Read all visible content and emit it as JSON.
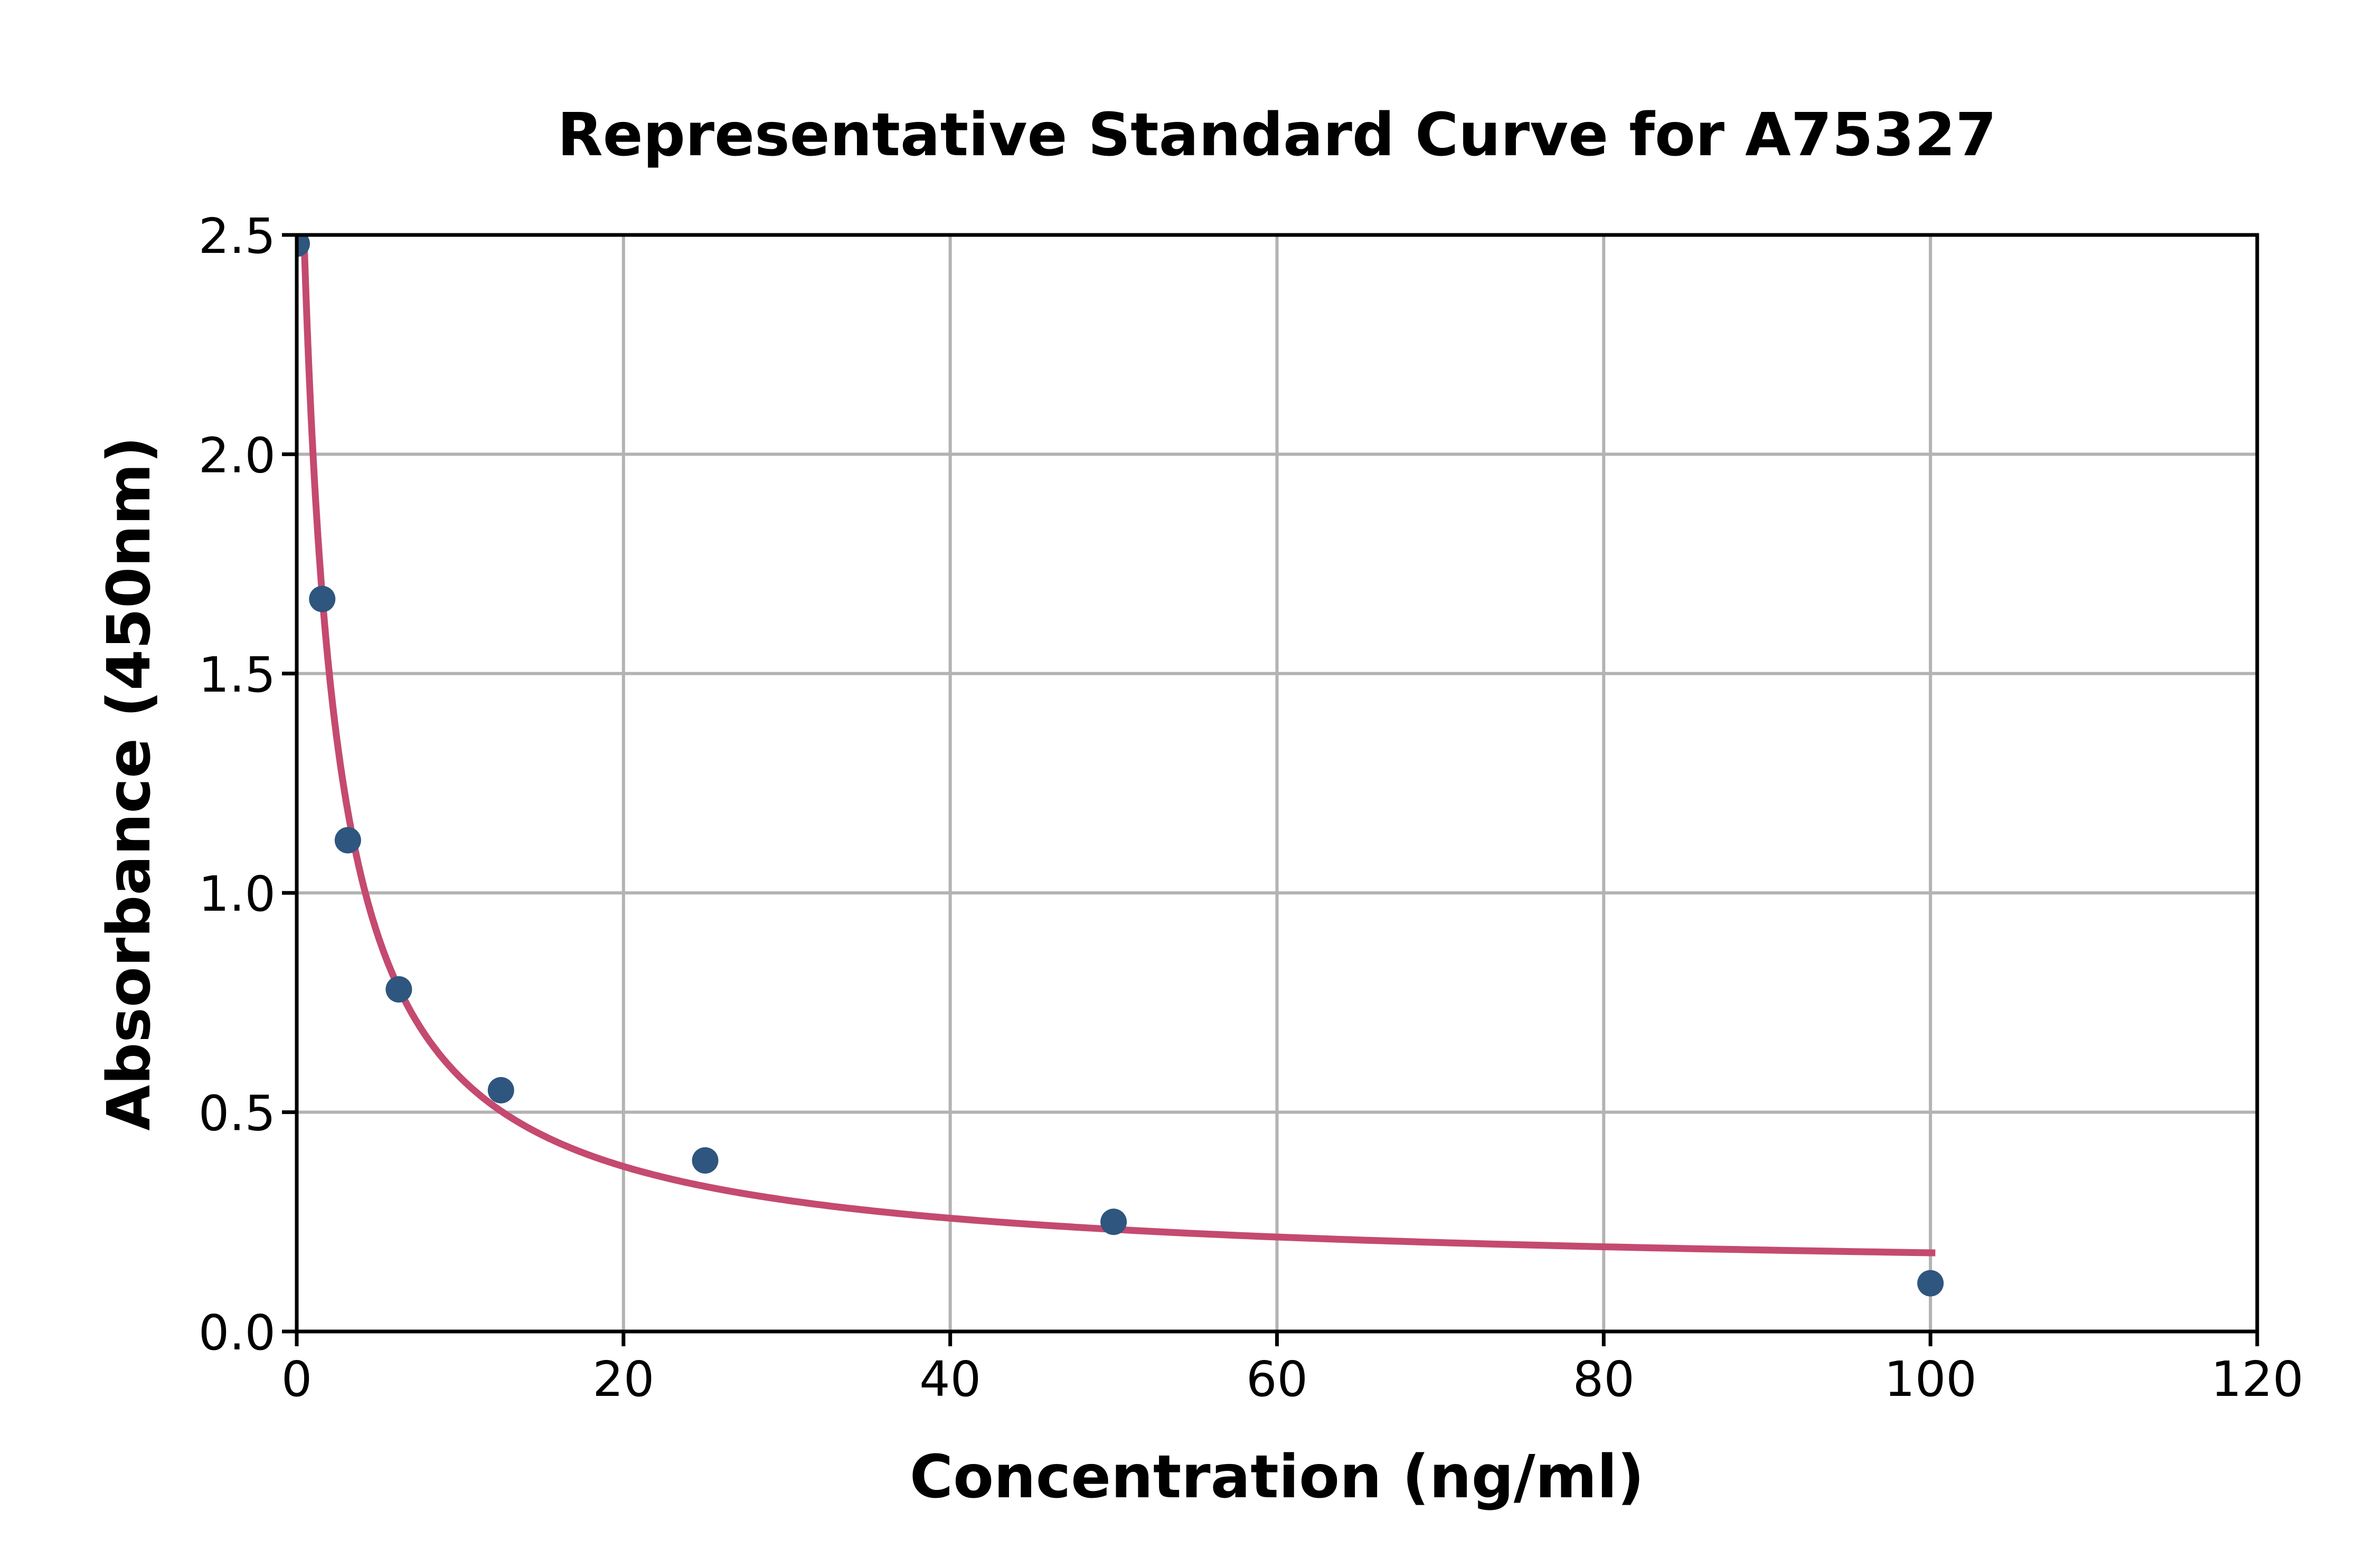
{
  "chart_data": {
    "type": "scatter",
    "title": "Representative Standard Curve for A75327",
    "xlabel": "Concentration (ng/ml)",
    "ylabel": "Absorbance (450nm)",
    "xlim": [
      0,
      120
    ],
    "ylim": [
      0,
      2.5
    ],
    "xticks": [
      0,
      20,
      40,
      60,
      80,
      100,
      120
    ],
    "ytick_labels": [
      "0.0",
      "0.5",
      "1.0",
      "1.5",
      "2.0",
      "2.5"
    ],
    "ytick_values": [
      0,
      0.5,
      1.0,
      1.5,
      2.0,
      2.5
    ],
    "grid": true,
    "legend": "none",
    "points": [
      {
        "x": 0,
        "y": 2.48
      },
      {
        "x": 1.56,
        "y": 1.67
      },
      {
        "x": 3.13,
        "y": 1.12
      },
      {
        "x": 6.25,
        "y": 0.78
      },
      {
        "x": 12.5,
        "y": 0.55
      },
      {
        "x": 25,
        "y": 0.39
      },
      {
        "x": 50,
        "y": 0.25
      },
      {
        "x": 100,
        "y": 0.11
      }
    ],
    "fit_curve": {
      "model": "4PL",
      "params": {
        "a": 3.2,
        "b": 0.95,
        "c": 1.6,
        "d": 0.12
      },
      "x_start": 0.02,
      "x_end": 100.3
    },
    "colors": {
      "points": "#2E567E",
      "curve": "#C44A70",
      "grid": "#B3B3B3",
      "axis": "#000000",
      "tick_text": "#000000",
      "background": "#FFFFFF"
    }
  }
}
